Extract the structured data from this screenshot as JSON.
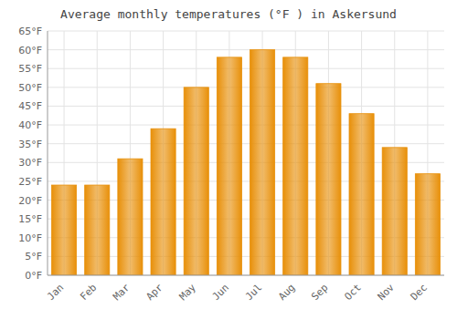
{
  "chart_data": {
    "type": "bar",
    "title": "Average monthly temperatures (°F ) in Askersund",
    "categories": [
      "Jan",
      "Feb",
      "Mar",
      "Apr",
      "May",
      "Jun",
      "Jul",
      "Aug",
      "Sep",
      "Oct",
      "Nov",
      "Dec"
    ],
    "values": [
      24,
      24,
      31,
      39,
      50,
      58,
      60,
      58,
      51,
      43,
      34,
      27
    ],
    "color": "#E8900A",
    "ylim": [
      0,
      65
    ],
    "yticks": [
      {
        "value": 0,
        "label": "0°F"
      },
      {
        "value": 5,
        "label": "5°F"
      },
      {
        "value": 10,
        "label": "10°F"
      },
      {
        "value": 15,
        "label": "15°F"
      },
      {
        "value": 20,
        "label": "20°F"
      },
      {
        "value": 25,
        "label": "25°F"
      },
      {
        "value": 30,
        "label": "30°F"
      },
      {
        "value": 35,
        "label": "35°F"
      },
      {
        "value": 40,
        "label": "40°F"
      },
      {
        "value": 45,
        "label": "45°F"
      },
      {
        "value": 50,
        "label": "50°F"
      },
      {
        "value": 55,
        "label": "55°F"
      },
      {
        "value": 60,
        "label": "60°F"
      },
      {
        "value": 65,
        "label": "65°F"
      }
    ],
    "grid": true
  }
}
